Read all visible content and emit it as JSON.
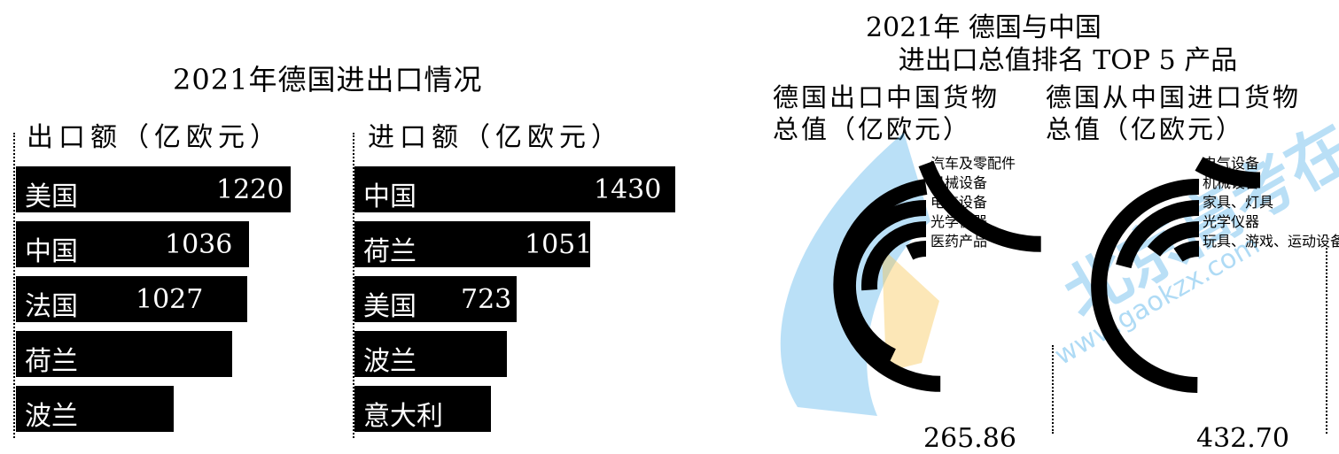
{
  "chart_data": [
    {
      "type": "bar",
      "orientation": "horizontal",
      "title": "2021年德国进出口情况",
      "series_label": "出口额（亿欧元）",
      "categories": [
        "美国",
        "中国",
        "法国",
        "荷兰",
        "波兰"
      ],
      "values": [
        1220,
        1036,
        1027,
        960,
        700
      ],
      "value_labels": [
        "1220",
        "1036",
        "1027",
        "",
        ""
      ]
    },
    {
      "type": "bar",
      "orientation": "horizontal",
      "series_label": "进口额（亿欧元）",
      "categories": [
        "中国",
        "荷兰",
        "美国",
        "波兰",
        "意大利"
      ],
      "values": [
        1430,
        1051,
        723,
        680,
        610
      ],
      "value_labels": [
        "1430",
        "1051",
        "723",
        "",
        ""
      ]
    },
    {
      "type": "radial_bar",
      "title_line1": "2021年 德国与中国",
      "title_line2": "进出口总值排名 TOP 5 产品",
      "series_label_line1": "德国出口中国货物",
      "series_label_line2": "总值（亿欧元）",
      "categories": [
        "汽车及零配件",
        "机械设备",
        "电气设备",
        "光学仪器",
        "医药产品"
      ],
      "values": [
        77,
        50,
        41,
        25,
        7
      ],
      "total": "265.86"
    },
    {
      "type": "radial_bar",
      "series_label_line1": "德国从中国进口货物",
      "series_label_line2": "总值（亿欧元）",
      "categories": [
        "电气设备",
        "机械设备",
        "家具、灯具",
        "光学仪器",
        "玩具、游戏、运动设备"
      ],
      "values": [
        175,
        95,
        40,
        28,
        18
      ],
      "total": "432.70"
    }
  ],
  "watermark": {
    "text": "北京高考在线",
    "url": "www.gaokzx.com"
  },
  "colors": {
    "bar": "#000000",
    "text_on_bar": "#ffffff",
    "background": "#ffffff",
    "watermark_blue": "#3aa6e8",
    "watermark_orange": "#f7c24a"
  }
}
